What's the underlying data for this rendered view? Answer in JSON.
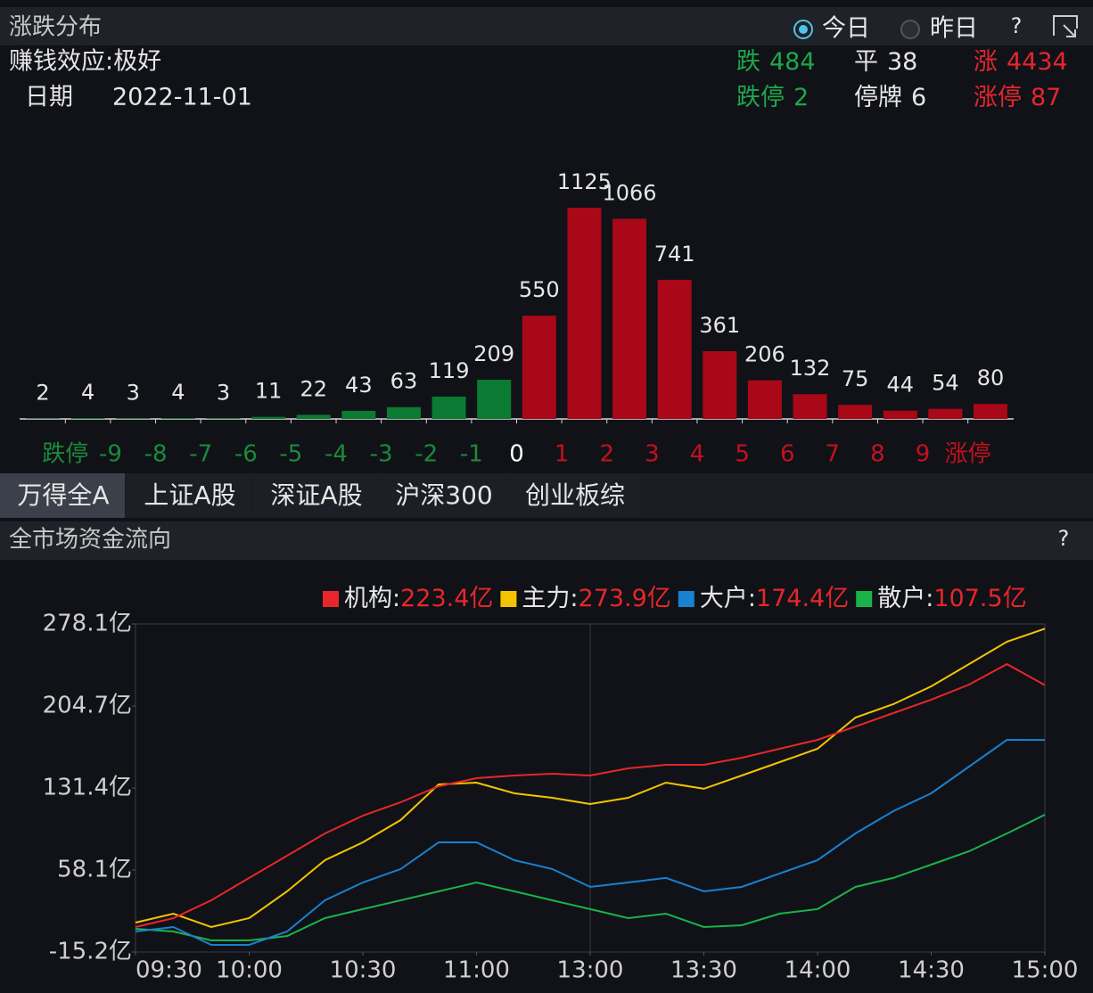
{
  "header": {
    "title": "涨跌分布",
    "options": [
      "今日",
      "昨日"
    ],
    "help": "?"
  },
  "summary": {
    "effect": "赚钱效应:极好",
    "date_label": "日期",
    "date": "2022-11-01",
    "stats": [
      {
        "label": "跌",
        "value": 484,
        "color": "#1fa64a"
      },
      {
        "label": "平",
        "value": 38,
        "color": "#e6e6e6"
      },
      {
        "label": "涨",
        "value": 4434,
        "color": "#e5262d"
      },
      {
        "label": "跌停",
        "value": 2,
        "color": "#1fa64a"
      },
      {
        "label": "停牌",
        "value": 6,
        "color": "#e6e6e6"
      },
      {
        "label": "涨停",
        "value": 87,
        "color": "#e5262d"
      }
    ]
  },
  "tabs": [
    "万得全A",
    "上证A股",
    "深证A股",
    "沪深300",
    "创业板综"
  ],
  "selected_tab": 0,
  "flow_header": {
    "title": "全市场资金流向",
    "help": "?"
  },
  "chart_data": [
    {
      "type": "bar",
      "values": [
        2,
        4,
        3,
        4,
        3,
        11,
        22,
        43,
        63,
        119,
        209,
        550,
        1125,
        1066,
        741,
        361,
        206,
        132,
        75,
        44,
        54,
        80
      ],
      "colors": [
        "#0b7a32",
        "#0b7a32",
        "#0b7a32",
        "#0b7a32",
        "#0b7a32",
        "#0b7a32",
        "#0b7a32",
        "#0b7a32",
        "#0b7a32",
        "#0b7a32",
        "#0b7a32",
        "#a80818",
        "#a80818",
        "#a80818",
        "#a80818",
        "#a80818",
        "#a80818",
        "#a80818",
        "#a80818",
        "#a80818",
        "#a80818",
        "#a80818"
      ],
      "boundary_labels": [
        "跌停",
        "-9",
        "-8",
        "-7",
        "-6",
        "-5",
        "-4",
        "-3",
        "-2",
        "-1",
        "0",
        "1",
        "2",
        "3",
        "4",
        "5",
        "6",
        "7",
        "8",
        "9",
        "涨停"
      ],
      "label_colors": [
        "#1a8a3a",
        "#1a8a3a",
        "#1a8a3a",
        "#1a8a3a",
        "#1a8a3a",
        "#1a8a3a",
        "#1a8a3a",
        "#1a8a3a",
        "#1a8a3a",
        "#1a8a3a",
        "#ffffff",
        "#c4101f",
        "#c4101f",
        "#c4101f",
        "#c4101f",
        "#c4101f",
        "#c4101f",
        "#c4101f",
        "#c4101f",
        "#c4101f",
        "#c4101f"
      ]
    },
    {
      "type": "line",
      "legend_separator": ":",
      "x": [
        0,
        10,
        20,
        30,
        40,
        50,
        60,
        70,
        80,
        90,
        100,
        110,
        120,
        130,
        140,
        150,
        160,
        170,
        180,
        190,
        200,
        210,
        220,
        230,
        240
      ],
      "xlim": [
        0,
        240
      ],
      "xticks": [
        {
          "value": 0,
          "label": "09:30"
        },
        {
          "value": 30,
          "label": "10:00"
        },
        {
          "value": 60,
          "label": "10:30"
        },
        {
          "value": 90,
          "label": "11:00"
        },
        {
          "value": 120,
          "label": "13:00"
        },
        {
          "value": 150,
          "label": "13:30"
        },
        {
          "value": 180,
          "label": "14:00"
        },
        {
          "value": 210,
          "label": "14:30"
        },
        {
          "value": 240,
          "label": "15:00"
        }
      ],
      "ylim": [
        -15.2,
        278.1
      ],
      "yticks": [
        {
          "value": 278.1,
          "label": "278.1亿"
        },
        {
          "value": 204.7,
          "label": "204.7亿"
        },
        {
          "value": 131.4,
          "label": "131.4亿"
        },
        {
          "value": 58.1,
          "label": "58.1亿"
        },
        {
          "value": -15.2,
          "label": "-15.2亿"
        }
      ],
      "series": [
        {
          "name": "机构",
          "color": "#e8262a",
          "value_label": "223.4亿",
          "values": [
            7.1,
            15.1,
            31.0,
            51.0,
            70.9,
            90.8,
            106.7,
            118.7,
            133.0,
            140.2,
            142.6,
            144.2,
            142.6,
            149.0,
            152.2,
            152.2,
            158.5,
            166.5,
            174.5,
            186.4,
            198.4,
            210.4,
            223.9,
            242.2,
            223.4
          ]
        },
        {
          "name": "主力",
          "color": "#f5c400",
          "value_label": "273.9亿",
          "values": [
            11.1,
            19.1,
            7.1,
            15.1,
            39.0,
            66.9,
            82.8,
            102.8,
            134.6,
            136.2,
            126.7,
            122.7,
            117.1,
            122.7,
            136.2,
            130.7,
            142.6,
            154.6,
            166.5,
            194.4,
            206.4,
            222.3,
            242.2,
            262.2,
            273.9
          ]
        },
        {
          "name": "大户",
          "color": "#1a80d0",
          "value_label": "174.4亿",
          "values": [
            3.1,
            7.1,
            -8.8,
            -8.8,
            3.1,
            31.0,
            47.0,
            59.0,
            82.8,
            82.8,
            66.9,
            59.0,
            43.0,
            47.0,
            51.0,
            39.0,
            43.0,
            55.0,
            66.9,
            90.8,
            110.7,
            126.7,
            150.6,
            174.5,
            174.4
          ]
        },
        {
          "name": "散户",
          "color": "#1ab34a",
          "value_label": "107.5亿",
          "values": [
            5.5,
            3.1,
            -4.8,
            -4.8,
            -0.9,
            15.1,
            23.1,
            31.0,
            39.0,
            47.0,
            39.0,
            31.0,
            23.1,
            15.1,
            19.1,
            7.1,
            8.7,
            19.1,
            23.1,
            43.0,
            51.0,
            62.9,
            74.9,
            90.8,
            107.5
          ]
        }
      ],
      "value_label_color": "#e8262a"
    }
  ]
}
